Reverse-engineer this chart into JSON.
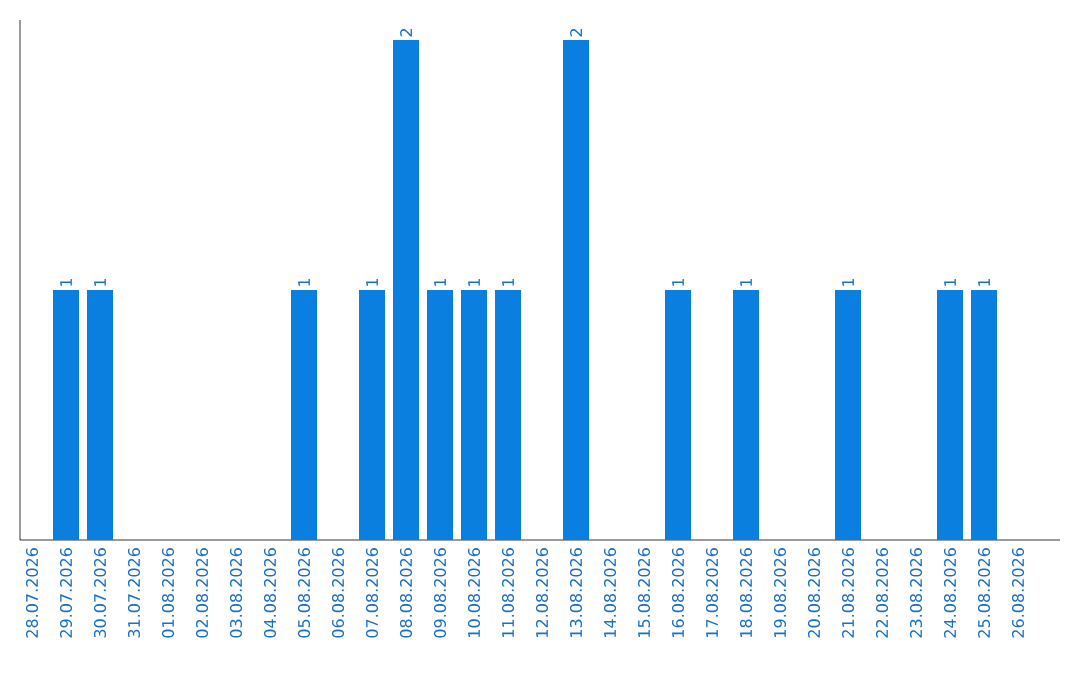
{
  "chart_data": {
    "type": "bar",
    "color": "#0a7fe0",
    "categories": [
      "28.07.2026",
      "29.07.2026",
      "30.07.2026",
      "31.07.2026",
      "01.08.2026",
      "02.08.2026",
      "03.08.2026",
      "04.08.2026",
      "05.08.2026",
      "06.08.2026",
      "07.08.2026",
      "08.08.2026",
      "09.08.2026",
      "10.08.2026",
      "11.08.2026",
      "12.08.2026",
      "13.08.2026",
      "14.08.2026",
      "15.08.2026",
      "16.08.2026",
      "17.08.2026",
      "18.08.2026",
      "19.08.2026",
      "20.08.2026",
      "21.08.2026",
      "22.08.2026",
      "23.08.2026",
      "24.08.2026",
      "25.08.2026",
      "26.08.2026"
    ],
    "values": [
      0,
      1,
      1,
      0,
      0,
      0,
      0,
      0,
      1,
      0,
      1,
      2,
      1,
      1,
      1,
      0,
      2,
      0,
      0,
      1,
      0,
      1,
      0,
      0,
      1,
      0,
      0,
      1,
      1,
      0
    ],
    "value_labels": [
      null,
      "1",
      "1",
      null,
      null,
      null,
      null,
      null,
      "1",
      null,
      "1",
      "2",
      "1",
      "1",
      "1",
      null,
      "2",
      null,
      null,
      "1",
      null,
      "1",
      null,
      null,
      "1",
      null,
      null,
      "1",
      "1",
      null
    ],
    "ylim": [
      0,
      2.08
    ]
  }
}
